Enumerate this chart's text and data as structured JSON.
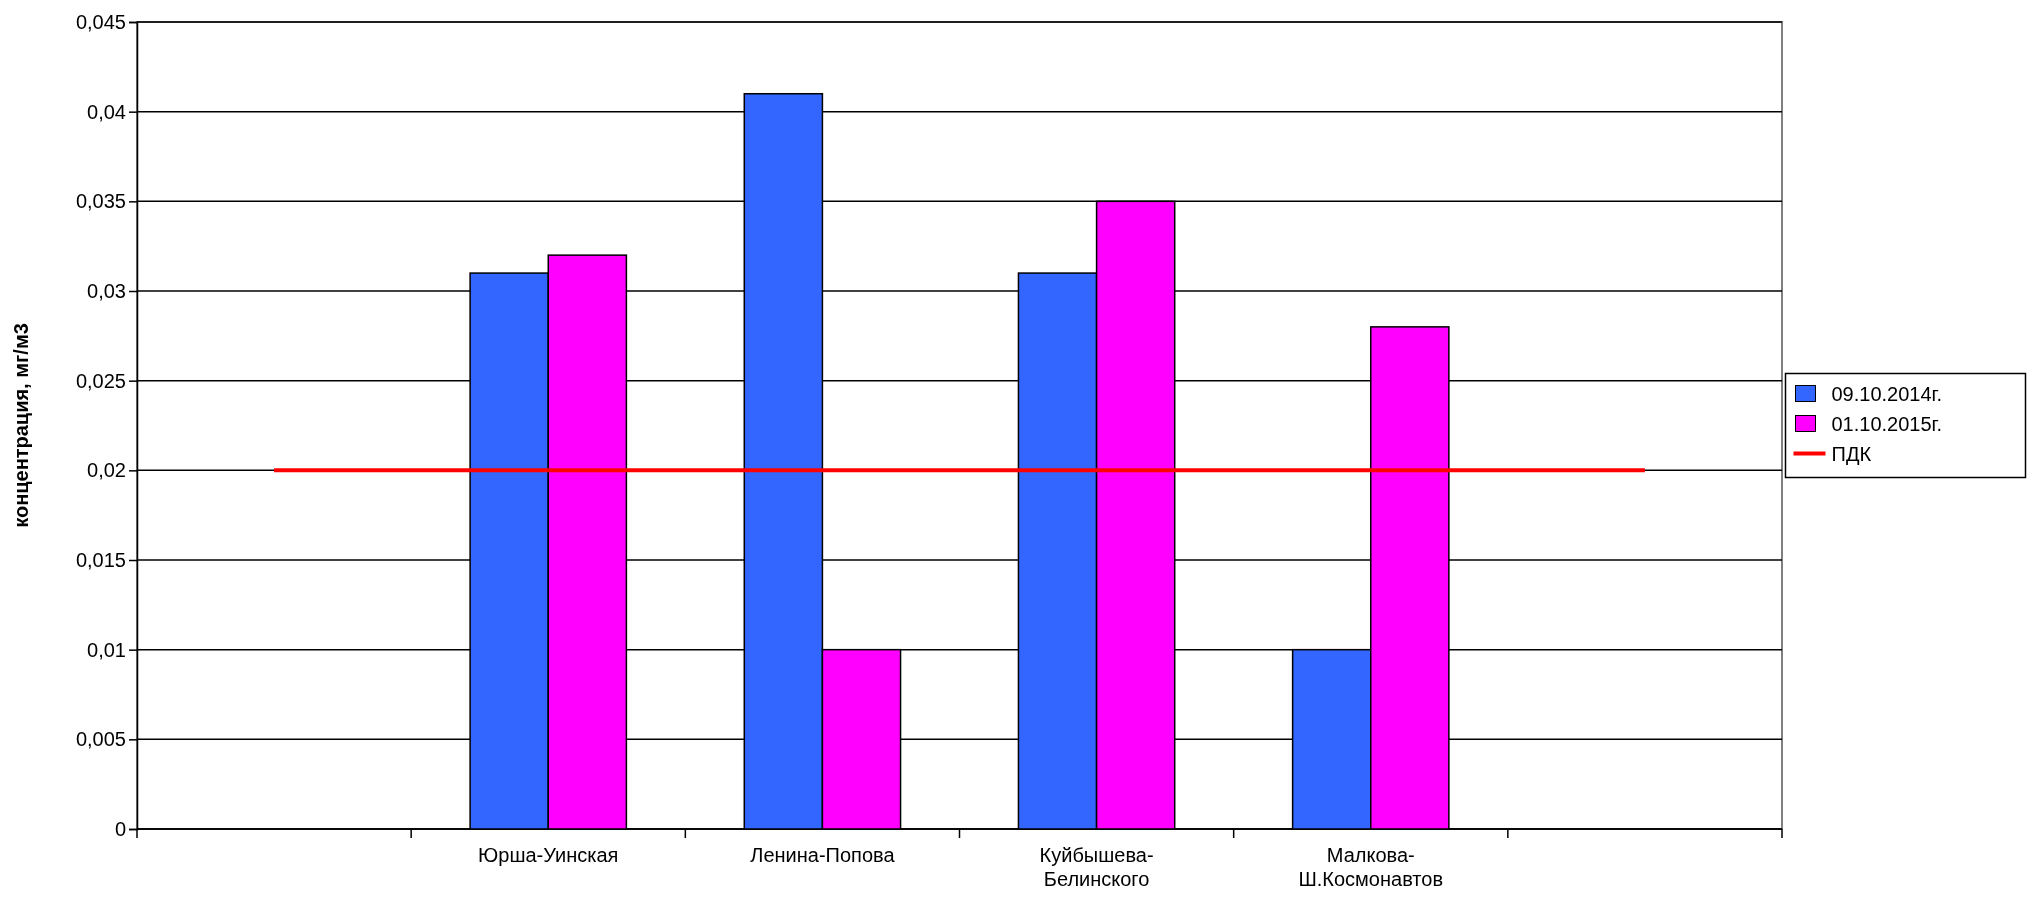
{
  "chart_data": {
    "type": "bar",
    "ylabel": "концентрация, мг/м3",
    "categories": [
      null,
      "Юрша-Уинская",
      "Ленина-Попова",
      "Куйбышева-Белинского",
      "Малкова-Ш.Космонавтов",
      null
    ],
    "series": [
      {
        "name": "09.10.2014г.",
        "color": "#3366ff",
        "values": [
          null,
          0.031,
          0.041,
          0.031,
          0.01,
          null
        ]
      },
      {
        "name": "01.10.2015г.",
        "color": "#ff00ff",
        "values": [
          null,
          0.032,
          0.01,
          0.035,
          0.028,
          null
        ]
      },
      {
        "name": "ПДК",
        "type": "line",
        "color": "#ff0000",
        "values": [
          0.02,
          0.02,
          0.02,
          0.02,
          0.02,
          0.02
        ]
      }
    ],
    "ylim": [
      0,
      0.045
    ],
    "yticks": [
      0,
      {
        "value": 0.005,
        "label": "0,005"
      },
      {
        "value": 0.01,
        "label": "0,01"
      },
      {
        "value": 0.015,
        "label": "0,015"
      },
      {
        "value": 0.02,
        "label": "0,02"
      },
      {
        "value": 0.025,
        "label": "0,025"
      },
      {
        "value": 0.03,
        "label": "0,03"
      },
      {
        "value": 0.035,
        "label": "0,035"
      },
      {
        "value": 0.04,
        "label": "0,04"
      },
      {
        "value": 0.045,
        "label": "0,045"
      }
    ],
    "grid": "y",
    "legend": "right",
    "marker": "none"
  }
}
